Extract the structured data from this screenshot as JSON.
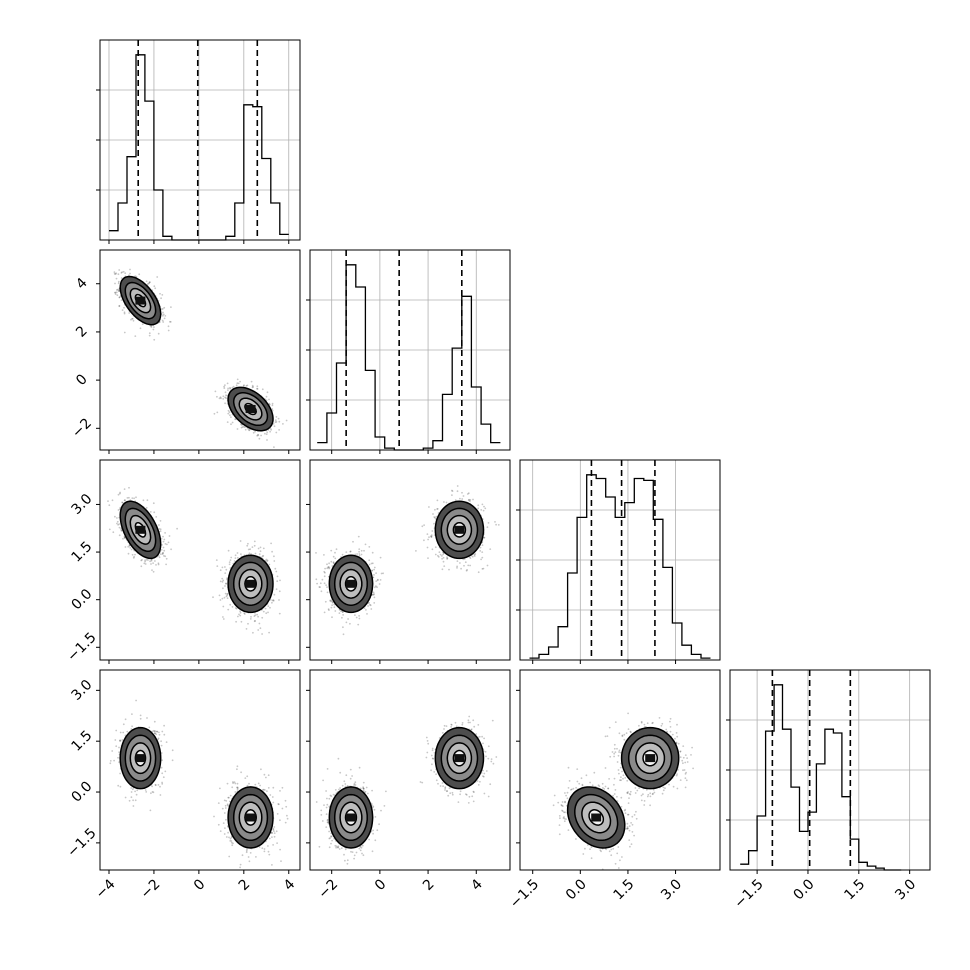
{
  "chart_data": {
    "type": "corner",
    "grid": true,
    "dims": [
      {
        "range": [
          -4.4,
          4.5
        ],
        "ticks": [
          -4,
          -2,
          0,
          2,
          4
        ],
        "tick_labels": [
          "−4",
          "−2",
          "0",
          "2",
          "4"
        ],
        "quantiles": [
          -2.7,
          -0.05,
          2.6
        ],
        "hist": {
          "edges": [
            -4.0,
            -3.6,
            -3.2,
            -2.8,
            -2.4,
            -2.0,
            -1.6,
            -1.2,
            -0.8,
            -0.4,
            0.0,
            0.4,
            0.8,
            1.2,
            1.6,
            2.0,
            2.4,
            2.8,
            3.2,
            3.6,
            4.0
          ],
          "counts": [
            0.05,
            0.2,
            0.45,
            1.0,
            0.75,
            0.27,
            0.02,
            0.0,
            0.0,
            0.0,
            0.0,
            0.0,
            0.0,
            0.02,
            0.2,
            0.73,
            0.72,
            0.44,
            0.2,
            0.03
          ]
        }
      },
      {
        "range": [
          -2.9,
          5.4
        ],
        "ticks": [
          -2,
          0,
          2,
          4
        ],
        "tick_labels": [
          "−2",
          "0",
          "2",
          "4"
        ],
        "quantiles": [
          -1.4,
          0.8,
          3.4
        ],
        "hist": {
          "edges": [
            -2.6,
            -2.2,
            -1.8,
            -1.4,
            -1.0,
            -0.6,
            -0.2,
            0.2,
            0.6,
            1.0,
            1.4,
            1.8,
            2.2,
            2.6,
            3.0,
            3.4,
            3.8,
            4.2,
            4.6,
            5.0
          ],
          "counts": [
            0.04,
            0.2,
            0.47,
            1.0,
            0.88,
            0.43,
            0.07,
            0.01,
            0.0,
            0.0,
            0.0,
            0.01,
            0.05,
            0.3,
            0.55,
            0.83,
            0.34,
            0.14,
            0.04
          ]
        }
      },
      {
        "range": [
          -1.9,
          4.4
        ],
        "ticks": [
          -1.5,
          0.0,
          1.5,
          3.0
        ],
        "tick_labels": [
          "−1.5",
          "0.0",
          "1.5",
          "3.0"
        ],
        "quantiles": [
          0.35,
          1.3,
          2.35
        ],
        "hist": {
          "edges": [
            -1.6,
            -1.3,
            -1.0,
            -0.7,
            -0.4,
            -0.1,
            0.2,
            0.5,
            0.8,
            1.1,
            1.4,
            1.7,
            2.0,
            2.3,
            2.6,
            2.9,
            3.2,
            3.5,
            3.8,
            4.1
          ],
          "counts": [
            0.01,
            0.03,
            0.07,
            0.18,
            0.47,
            0.77,
            1.0,
            0.98,
            0.88,
            0.77,
            0.85,
            0.98,
            0.97,
            0.76,
            0.5,
            0.2,
            0.08,
            0.03,
            0.01
          ]
        }
      },
      {
        "range": [
          -2.3,
          3.6
        ],
        "ticks": [
          -1.5,
          0.0,
          1.5,
          3.0
        ],
        "tick_labels": [
          "−1.5",
          "0.0",
          "1.5",
          "3.0"
        ],
        "quantiles": [
          -1.05,
          0.05,
          1.25
        ],
        "hist": {
          "edges": [
            -2.0,
            -1.75,
            -1.5,
            -1.25,
            -1.0,
            -0.75,
            -0.5,
            -0.25,
            0.0,
            0.25,
            0.5,
            0.75,
            1.0,
            1.25,
            1.5,
            1.75,
            2.0,
            2.25,
            2.5,
            2.75
          ],
          "counts": [
            0.03,
            0.1,
            0.28,
            0.72,
            0.96,
            0.73,
            0.43,
            0.2,
            0.3,
            0.55,
            0.73,
            0.71,
            0.38,
            0.16,
            0.04,
            0.02,
            0.01,
            0.0,
            0.0
          ]
        }
      }
    ],
    "clusters": [
      {
        "center": [
          -2.6,
          3.3,
          2.2,
          1.0
        ],
        "sd": [
          0.45,
          0.5,
          0.45,
          0.45
        ],
        "corr": {
          "0-1": -0.55,
          "0-2": -0.5,
          "0-3": 0.0,
          "1-2": 0.0,
          "1-3": 0.0,
          "2-3": 0.0
        }
      },
      {
        "center": [
          2.3,
          -1.2,
          0.5,
          -0.75
        ],
        "sd": [
          0.5,
          0.45,
          0.45,
          0.45
        ],
        "corr": {
          "0-1": -0.45,
          "0-2": 0.0,
          "0-3": 0.0,
          "1-2": 0.0,
          "1-3": 0.0,
          "2-3": -0.25
        }
      }
    ],
    "contour_levels_sigma": [
      0.5,
      1.0,
      1.5,
      2.0
    ]
  }
}
